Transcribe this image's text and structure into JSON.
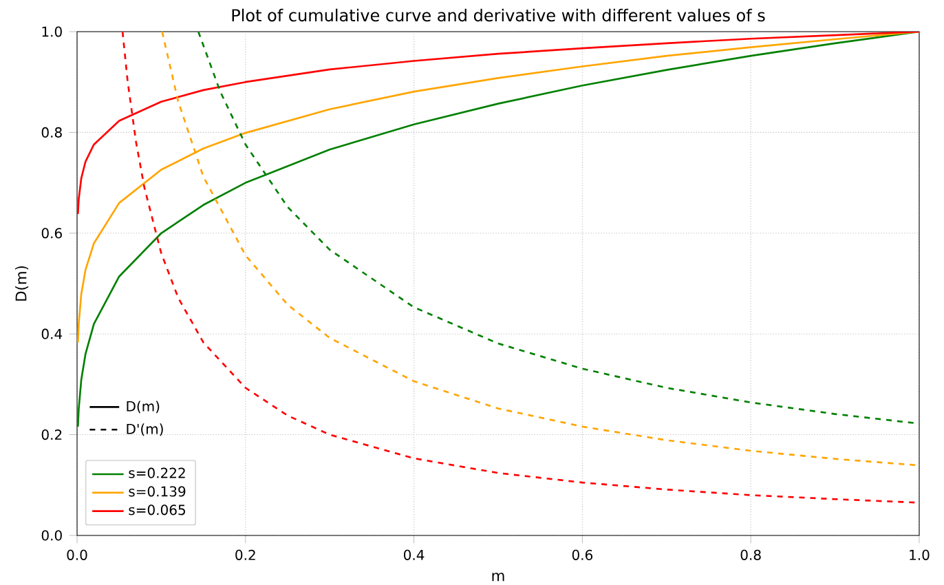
{
  "chart_data": {
    "type": "line",
    "title": "Plot of cumulative curve and derivative with different values of s",
    "xlabel": "m",
    "ylabel": "D(m)",
    "xlim": [
      0,
      1
    ],
    "ylim": [
      0,
      1
    ],
    "xticks": [
      {
        "value": 0,
        "label": "0.0"
      },
      {
        "value": 0.2,
        "label": "0.2"
      },
      {
        "value": 0.4,
        "label": "0.4"
      },
      {
        "value": 0.6,
        "label": "0.6"
      },
      {
        "value": 0.8,
        "label": "0.8"
      },
      {
        "value": 1,
        "label": "1.0"
      }
    ],
    "yticks": [
      {
        "value": 0,
        "label": "0.0"
      },
      {
        "value": 0.2,
        "label": "0.2"
      },
      {
        "value": 0.4,
        "label": "0.4"
      },
      {
        "value": 0.6,
        "label": "0.6"
      },
      {
        "value": 0.8,
        "label": "0.8"
      },
      {
        "value": 1,
        "label": "1.0"
      }
    ],
    "grid": true,
    "legend": "bottom left",
    "marker": "none",
    "annotations": [
      "D(m)",
      "D'(m)"
    ],
    "series": [
      {
        "name": "s=0.222",
        "color": "#008000",
        "line_style": "solid",
        "x": [
          0.001,
          0.002,
          0.005,
          0.01,
          0.02,
          0.05,
          0.1,
          0.15,
          0.2,
          0.3,
          0.4,
          0.5,
          0.6,
          0.7,
          0.8,
          0.9,
          1.0
        ],
        "values": [
          0.216,
          0.252,
          0.309,
          0.36,
          0.42,
          0.514,
          0.6,
          0.656,
          0.7,
          0.766,
          0.816,
          0.857,
          0.893,
          0.924,
          0.952,
          0.977,
          1.0
        ]
      },
      {
        "name": "s=0.139",
        "color": "#ffa500",
        "line_style": "solid",
        "x": [
          0.001,
          0.002,
          0.005,
          0.01,
          0.02,
          0.05,
          0.1,
          0.15,
          0.2,
          0.3,
          0.4,
          0.5,
          0.6,
          0.7,
          0.8,
          0.9,
          1.0
        ],
        "values": [
          0.383,
          0.421,
          0.479,
          0.527,
          0.58,
          0.66,
          0.726,
          0.768,
          0.799,
          0.846,
          0.881,
          0.908,
          0.931,
          0.952,
          0.969,
          0.985,
          1.0
        ]
      },
      {
        "name": "s=0.065",
        "color": "#ff0000",
        "line_style": "solid",
        "x": [
          0.001,
          0.002,
          0.005,
          0.01,
          0.02,
          0.05,
          0.1,
          0.15,
          0.2,
          0.3,
          0.4,
          0.5,
          0.6,
          0.7,
          0.8,
          0.9,
          1.0
        ],
        "values": [
          0.638,
          0.668,
          0.709,
          0.742,
          0.776,
          0.823,
          0.861,
          0.884,
          0.9,
          0.925,
          0.942,
          0.956,
          0.967,
          0.977,
          0.986,
          0.993,
          1.0
        ]
      },
      {
        "color": "#008000",
        "line_style": "dashed",
        "x": [
          0.144,
          0.17,
          0.2,
          0.25,
          0.3,
          0.4,
          0.5,
          0.6,
          0.7,
          0.8,
          0.9,
          1.0
        ],
        "values": [
          1.0,
          0.881,
          0.776,
          0.652,
          0.567,
          0.453,
          0.381,
          0.331,
          0.293,
          0.264,
          0.241,
          0.222
        ]
      },
      {
        "color": "#ffa500",
        "line_style": "dashed",
        "x": [
          0.101,
          0.12,
          0.15,
          0.2,
          0.25,
          0.3,
          0.4,
          0.5,
          0.6,
          0.7,
          0.8,
          0.9,
          1.0
        ],
        "values": [
          1.0,
          0.862,
          0.712,
          0.556,
          0.458,
          0.392,
          0.306,
          0.252,
          0.216,
          0.189,
          0.168,
          0.152,
          0.139
        ]
      },
      {
        "color": "#ff0000",
        "line_style": "dashed",
        "x": [
          0.054,
          0.06,
          0.07,
          0.08,
          0.1,
          0.12,
          0.15,
          0.2,
          0.25,
          0.3,
          0.4,
          0.5,
          0.6,
          0.7,
          0.8,
          0.9,
          1.0
        ],
        "values": [
          1.0,
          0.902,
          0.781,
          0.69,
          0.56,
          0.472,
          0.383,
          0.293,
          0.238,
          0.2,
          0.153,
          0.124,
          0.105,
          0.091,
          0.08,
          0.072,
          0.065
        ]
      }
    ]
  }
}
